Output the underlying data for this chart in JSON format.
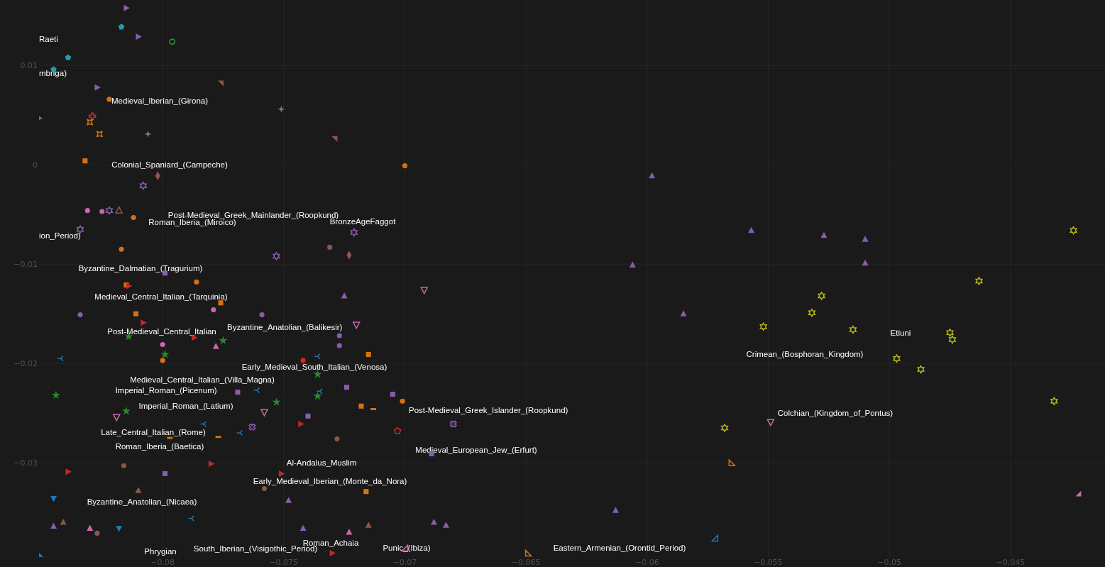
{
  "chart_data": {
    "type": "scatter",
    "xlim": [
      -0.0851,
      -0.0411
    ],
    "ylim": [
      -0.0395,
      0.0166
    ],
    "xticks": [
      {
        "value": -0.08,
        "label": "−0.08"
      },
      {
        "value": -0.075,
        "label": "−0.075"
      },
      {
        "value": -0.07,
        "label": "−0.07"
      },
      {
        "value": -0.065,
        "label": "−0.065"
      },
      {
        "value": -0.06,
        "label": "−0.06"
      },
      {
        "value": -0.055,
        "label": "−0.055"
      },
      {
        "value": -0.05,
        "label": "−0.05"
      },
      {
        "value": -0.045,
        "label": "−0.045"
      }
    ],
    "yticks": [
      {
        "value": 0.01,
        "label": "0.01"
      },
      0,
      {
        "value": -0.01,
        "label": "−0.01"
      },
      {
        "value": -0.02,
        "label": "−0.02"
      },
      {
        "value": -0.03,
        "label": "−0.03"
      }
    ],
    "grid": true,
    "series": [
      {
        "color": "#8a5cb0",
        "marker": "triangle",
        "x": [
          -0.0815,
          -0.081,
          -0.0827,
          -0.0851
        ],
        "values": [
          0.0158,
          0.0129,
          0.0078,
          0.0047
        ]
      },
      {
        "color": "#1a9fb0",
        "x": [
          -0.0817,
          -0.0839,
          -0.0845
        ],
        "values": [
          0.0139,
          0.0108,
          0.0096
        ]
      },
      {
        "color": "#2ca02c",
        "marker": "circle",
        "x": [
          -0.0796
        ],
        "values": [
          0.0124
        ]
      },
      {
        "color": "#8c564b",
        "marker": "triangle",
        "x": [
          -0.0776,
          -0.0729
        ],
        "values": [
          0.0082,
          0.0026
        ]
      },
      {
        "color": "#7f7f7f",
        "marker": "star",
        "x": [
          -0.0751,
          -0.0806
        ],
        "values": [
          0.0056,
          0.0031
        ]
      },
      {
        "color": "#d9700f",
        "marker": "circle",
        "x": [
          -0.0822,
          -0.07,
          -0.0812,
          -0.0817,
          -0.0786,
          -0.08,
          -0.0701
        ],
        "values": [
          0.0066,
          -0.0001,
          -0.0053,
          -0.0085,
          -0.0118,
          -0.0197,
          -0.0238
        ]
      },
      {
        "color": "#d62728",
        "marker": "cross",
        "x": [
          -0.0829
        ],
        "values": [
          0.0049
        ]
      },
      {
        "color": "#d9700f",
        "x": [
          -0.083,
          -0.0826
        ],
        "values": [
          0.0043,
          0.0031
        ]
      },
      {
        "color": "#d9700f",
        "marker": "square",
        "x": [
          -0.0832,
          -0.0815,
          -0.0811,
          -0.0776,
          -0.0715,
          -0.0718,
          -0.0716
        ],
        "values": [
          0.0004,
          -0.0121,
          -0.015,
          -0.0139,
          -0.0191,
          -0.0243,
          -0.0329
        ]
      },
      {
        "color": "#8c564b",
        "marker": "diamond",
        "x": [
          -0.0802,
          -0.0723
        ],
        "values": [
          -0.0011,
          -0.0091
        ]
      },
      {
        "color": "#8a5cb0",
        "x": [
          -0.0808,
          -0.0822,
          -0.0834,
          -0.0753,
          -0.0721
        ],
        "values": [
          -0.0021,
          -0.0046,
          -0.0065,
          -0.0092,
          -0.0068
        ]
      },
      {
        "color": "#cc66aa",
        "marker": "circle",
        "x": [
          -0.0831,
          -0.0825,
          -0.0779,
          -0.08
        ],
        "values": [
          -0.0046,
          -0.0047,
          -0.0146,
          -0.0181
        ]
      },
      {
        "color": "#8c564b",
        "marker": "triangle",
        "x": [
          -0.0818
        ],
        "values": [
          -0.0046
        ]
      },
      {
        "color": "#8c564b",
        "marker": "circle",
        "x": [
          -0.0731,
          -0.0728,
          -0.0816,
          -0.0758,
          -0.0827
        ],
        "values": [
          -0.0083,
          -0.0276,
          -0.0303,
          -0.0326,
          -0.0371
        ]
      },
      {
        "color": "#8a5cb0",
        "marker": "triangle",
        "x": [
          -0.0598,
          -0.0557,
          -0.0527,
          -0.051,
          -0.0606,
          -0.051,
          -0.0585,
          -0.0725,
          -0.0613,
          -0.0748,
          -0.0688,
          -0.0683,
          -0.0742,
          -0.0845
        ],
        "values": [
          -0.0011,
          -0.0066,
          -0.0071,
          -0.0075,
          -0.0101,
          -0.0099,
          -0.015,
          -0.0132,
          -0.0348,
          -0.0338,
          -0.036,
          -0.0363,
          -0.0366,
          -0.0364
        ]
      },
      {
        "color": "#cc66aa",
        "marker": "triangle",
        "x": [
          -0.0692,
          -0.072,
          -0.0819,
          -0.0758,
          -0.0549
        ],
        "values": [
          -0.0126,
          -0.0161,
          -0.0254,
          -0.0249,
          -0.0259
        ]
      },
      {
        "color": "#8a5cb0",
        "marker": "circle",
        "x": [
          -0.0834,
          -0.0759,
          -0.0727,
          -0.0727
        ],
        "values": [
          -0.0151,
          -0.0151,
          -0.0172,
          -0.0182
        ]
      },
      {
        "color": "#8a5cb0",
        "marker": "square",
        "x": [
          -0.0799,
          -0.0769,
          -0.0724,
          -0.0705,
          -0.074,
          -0.0689,
          -0.0799
        ],
        "values": [
          -0.0109,
          -0.0229,
          -0.0224,
          -0.0231,
          -0.0253,
          -0.0291,
          -0.0311
        ]
      },
      {
        "color": "#c62828",
        "marker": "triangle",
        "x": [
          -0.0808,
          -0.0787,
          -0.0743,
          -0.078,
          -0.0751,
          -0.073,
          -0.0839,
          -0.0814
        ],
        "values": [
          -0.0159,
          -0.0174,
          -0.0261,
          -0.0301,
          -0.0311,
          -0.0391,
          -0.0309,
          -0.0122
        ]
      },
      {
        "color": "#2a8a2a",
        "marker": "star",
        "x": [
          -0.0814,
          -0.0775,
          -0.0799,
          -0.0844,
          -0.0815,
          -0.0736,
          -0.0736,
          -0.0753
        ],
        "values": [
          -0.0173,
          -0.0177,
          -0.0191,
          -0.0232,
          -0.0248,
          -0.0211,
          -0.0233,
          -0.0239
        ]
      },
      {
        "color": "#cc66aa",
        "marker": "triangle",
        "x": [
          -0.0778,
          -0.083,
          -0.0723
        ],
        "values": [
          -0.0183,
          -0.0366,
          -0.037
        ]
      },
      {
        "color": "#d62728",
        "marker": "circle",
        "x": [
          -0.0742
        ],
        "values": [
          -0.0197
        ]
      },
      {
        "color": "#1f77b4",
        "marker": "cross",
        "x": [
          -0.0842,
          -0.0736,
          -0.0761,
          -0.0735,
          -0.0783,
          -0.0768,
          -0.0788
        ],
        "values": [
          -0.0195,
          -0.0193,
          -0.0227,
          -0.0228,
          -0.0261,
          -0.027,
          -0.0356
        ]
      },
      {
        "color": "#d9700f",
        "x": [
          -0.0713,
          -0.0777,
          -0.0797
        ],
        "values": [
          -0.0246,
          -0.0274,
          -0.0275
        ]
      },
      {
        "color": "#8a5cb0",
        "marker": "cross",
        "x": [
          -0.068,
          -0.0763
        ],
        "values": [
          -0.0261,
          -0.0264
        ]
      },
      {
        "color": "#d62728",
        "x": [
          -0.0703
        ],
        "values": [
          -0.0268
        ]
      },
      {
        "color": "#b5b520",
        "x": [
          -0.0424,
          -0.0463,
          -0.0528,
          -0.0532,
          -0.0552,
          -0.0515,
          -0.0475,
          -0.0474,
          -0.0497,
          -0.0487,
          -0.0432,
          -0.0568
        ],
        "values": [
          -0.0066,
          -0.0117,
          -0.0132,
          -0.0149,
          -0.0163,
          -0.0166,
          -0.0169,
          -0.0176,
          -0.0195,
          -0.0206,
          -0.0238,
          -0.0265
        ]
      },
      {
        "color": "#d9700f",
        "marker": "triangle",
        "x": [
          -0.0565,
          -0.0649
        ],
        "values": [
          -0.03,
          -0.0391
        ]
      },
      {
        "color": "#cc66aa",
        "marker": "triangle",
        "x": [
          -0.0422
        ],
        "values": [
          -0.0331
        ]
      },
      {
        "color": "#cc66aa",
        "marker": "triangle",
        "x": [
          -0.07
        ],
        "values": [
          -0.0386
        ]
      },
      {
        "color": "#1f77b4",
        "marker": "triangle",
        "x": [
          -0.0572
        ],
        "values": [
          -0.0376
        ]
      },
      {
        "color": "#1f77b4",
        "marker": "triangle",
        "x": [
          -0.0845,
          -0.0818
        ],
        "values": [
          -0.0336,
          -0.0366
        ]
      },
      {
        "color": "#8c564b",
        "marker": "triangle",
        "x": [
          -0.081,
          -0.0841,
          -0.0715
        ],
        "values": [
          -0.0328,
          -0.036,
          -0.0363
        ]
      },
      {
        "color": "#1f77b4",
        "marker": "triangle",
        "x": [
          -0.085
        ],
        "values": [
          -0.0393
        ]
      }
    ],
    "annotations": [
      "Raeti",
      "mbriga)",
      "ion_Period)",
      "Medieval_Iberian_(Girona)",
      "Colonial_Spaniard_(Campeche)",
      "Post-Medieval_Greek_Mainlander_(Roopkund)",
      "Roman_Iberia_(Miroico)",
      "BronzeAgeFaggot",
      "Byzantine_Dalmatian_(Tragurium)",
      "Medieval_Central_Italian_(Tarquinia)",
      "Post-Medieval_Central_Italian",
      "Byzantine_Anatolian_(Balikesir)",
      "Early_Medieval_South_Italian_(Venosa)",
      "Medieval_Central_Italian_(Villa_Magna)",
      "Imperial_Roman_(Picenum)",
      "Imperial_Roman_(Latium)",
      "Post-Medieval_Greek_Islander_(Roopkund)",
      "Late_Central_Italian_(Rome)",
      "Roman_Iberia_(Baetica)",
      "Medieval_European_Jew_(Erfurt)",
      "Al-Andalus_Muslim",
      "Early_Medieval_Iberian_(Monte_da_Nora)",
      "Byzantine_Anatolian_(Nicaea)",
      "Phrygian",
      "South_Iberian_(Visigothic_Period)",
      "Roman_Achaia",
      "Punic_(Ibiza)",
      "Eastern_Armenian_(Orontid_Period)",
      "Crimean_(Bosphoran_Kingdom)",
      "Etiuni",
      "Colchian_(Kingdom_of_Pontus)"
    ]
  }
}
